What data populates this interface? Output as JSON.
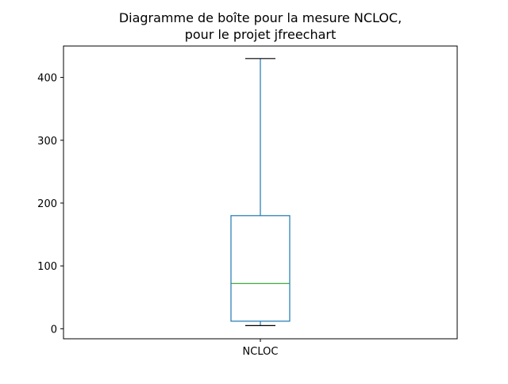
{
  "chart_data": {
    "type": "box",
    "title_lines": [
      "Diagramme de boîte pour la mesure NCLOC,",
      "pour le projet jfreechart"
    ],
    "categories": [
      "NCLOC"
    ],
    "series": [
      {
        "whisker_low": 5,
        "q1": 12,
        "median": 72,
        "q3": 180,
        "whisker_high": 430
      }
    ],
    "ylim": [
      -16,
      450
    ],
    "yticks": [
      0,
      100,
      200,
      300,
      400
    ],
    "grid": false,
    "colors": {
      "box": "#1f77b4",
      "whisker": "#1f77b4",
      "cap": "#000000",
      "median": "#2ca02c",
      "axes": "#000000"
    }
  }
}
